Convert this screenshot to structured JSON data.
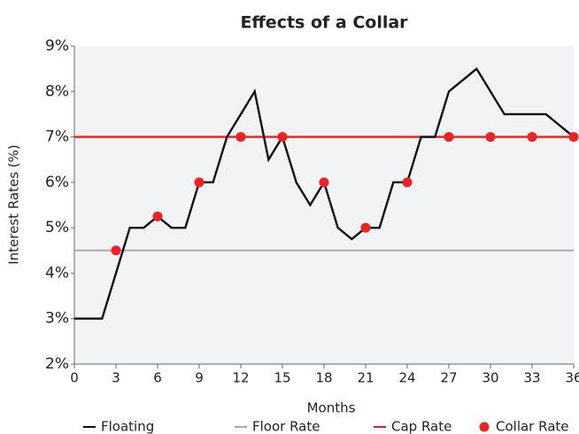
{
  "chart_data": {
    "type": "line",
    "title": "Effects of a Collar",
    "xlabel": "Months",
    "ylabel": "Interest Rates (%)",
    "xlim": [
      0,
      36
    ],
    "xticks": [
      0,
      3,
      6,
      9,
      12,
      15,
      18,
      21,
      24,
      27,
      30,
      33,
      36
    ],
    "ylim": [
      2,
      9
    ],
    "yticks": [
      {
        "value": 2,
        "label": "2%"
      },
      {
        "value": 3,
        "label": "3%"
      },
      {
        "value": 4,
        "label": "4%"
      },
      {
        "value": 5,
        "label": "5%"
      },
      {
        "value": 6,
        "label": "6%"
      },
      {
        "value": 7,
        "label": "7%"
      },
      {
        "value": 8,
        "label": "8%"
      },
      {
        "value": 9,
        "label": "9%"
      }
    ],
    "grid": false,
    "legend": "bottom",
    "series": [
      {
        "name": "Floating",
        "color": "#111111",
        "mark": "line",
        "x": [
          0,
          2,
          4,
          5,
          6,
          7,
          8,
          9,
          10,
          11,
          13,
          14,
          15,
          16,
          17,
          18,
          19,
          20,
          21,
          22,
          23,
          24,
          25,
          26,
          27,
          29,
          31,
          34,
          36
        ],
        "values": [
          3,
          3,
          5,
          5,
          5.25,
          5,
          5,
          6,
          6,
          7,
          8,
          6.5,
          7,
          6,
          5.5,
          6,
          5,
          4.75,
          5,
          5,
          6,
          6,
          7,
          7,
          8,
          8.5,
          7.5,
          7.5,
          7
        ]
      },
      {
        "name": "Floor Rate",
        "color": "#aaaaaa",
        "mark": "line",
        "x": [
          0,
          36
        ],
        "values": [
          4.5,
          4.5
        ]
      },
      {
        "name": "Cap Rate",
        "color": "#ee1c1c",
        "mark": "line",
        "x": [
          0,
          36
        ],
        "values": [
          7,
          7
        ]
      },
      {
        "name": "Collar Rate",
        "color": "#ee2222",
        "mark": "dot",
        "x": [
          3,
          6,
          9,
          12,
          15,
          18,
          21,
          24,
          27,
          30,
          33,
          36
        ],
        "values": [
          4.5,
          5.25,
          6,
          7,
          7,
          6,
          5,
          6,
          7,
          7,
          7,
          7
        ]
      }
    ]
  }
}
